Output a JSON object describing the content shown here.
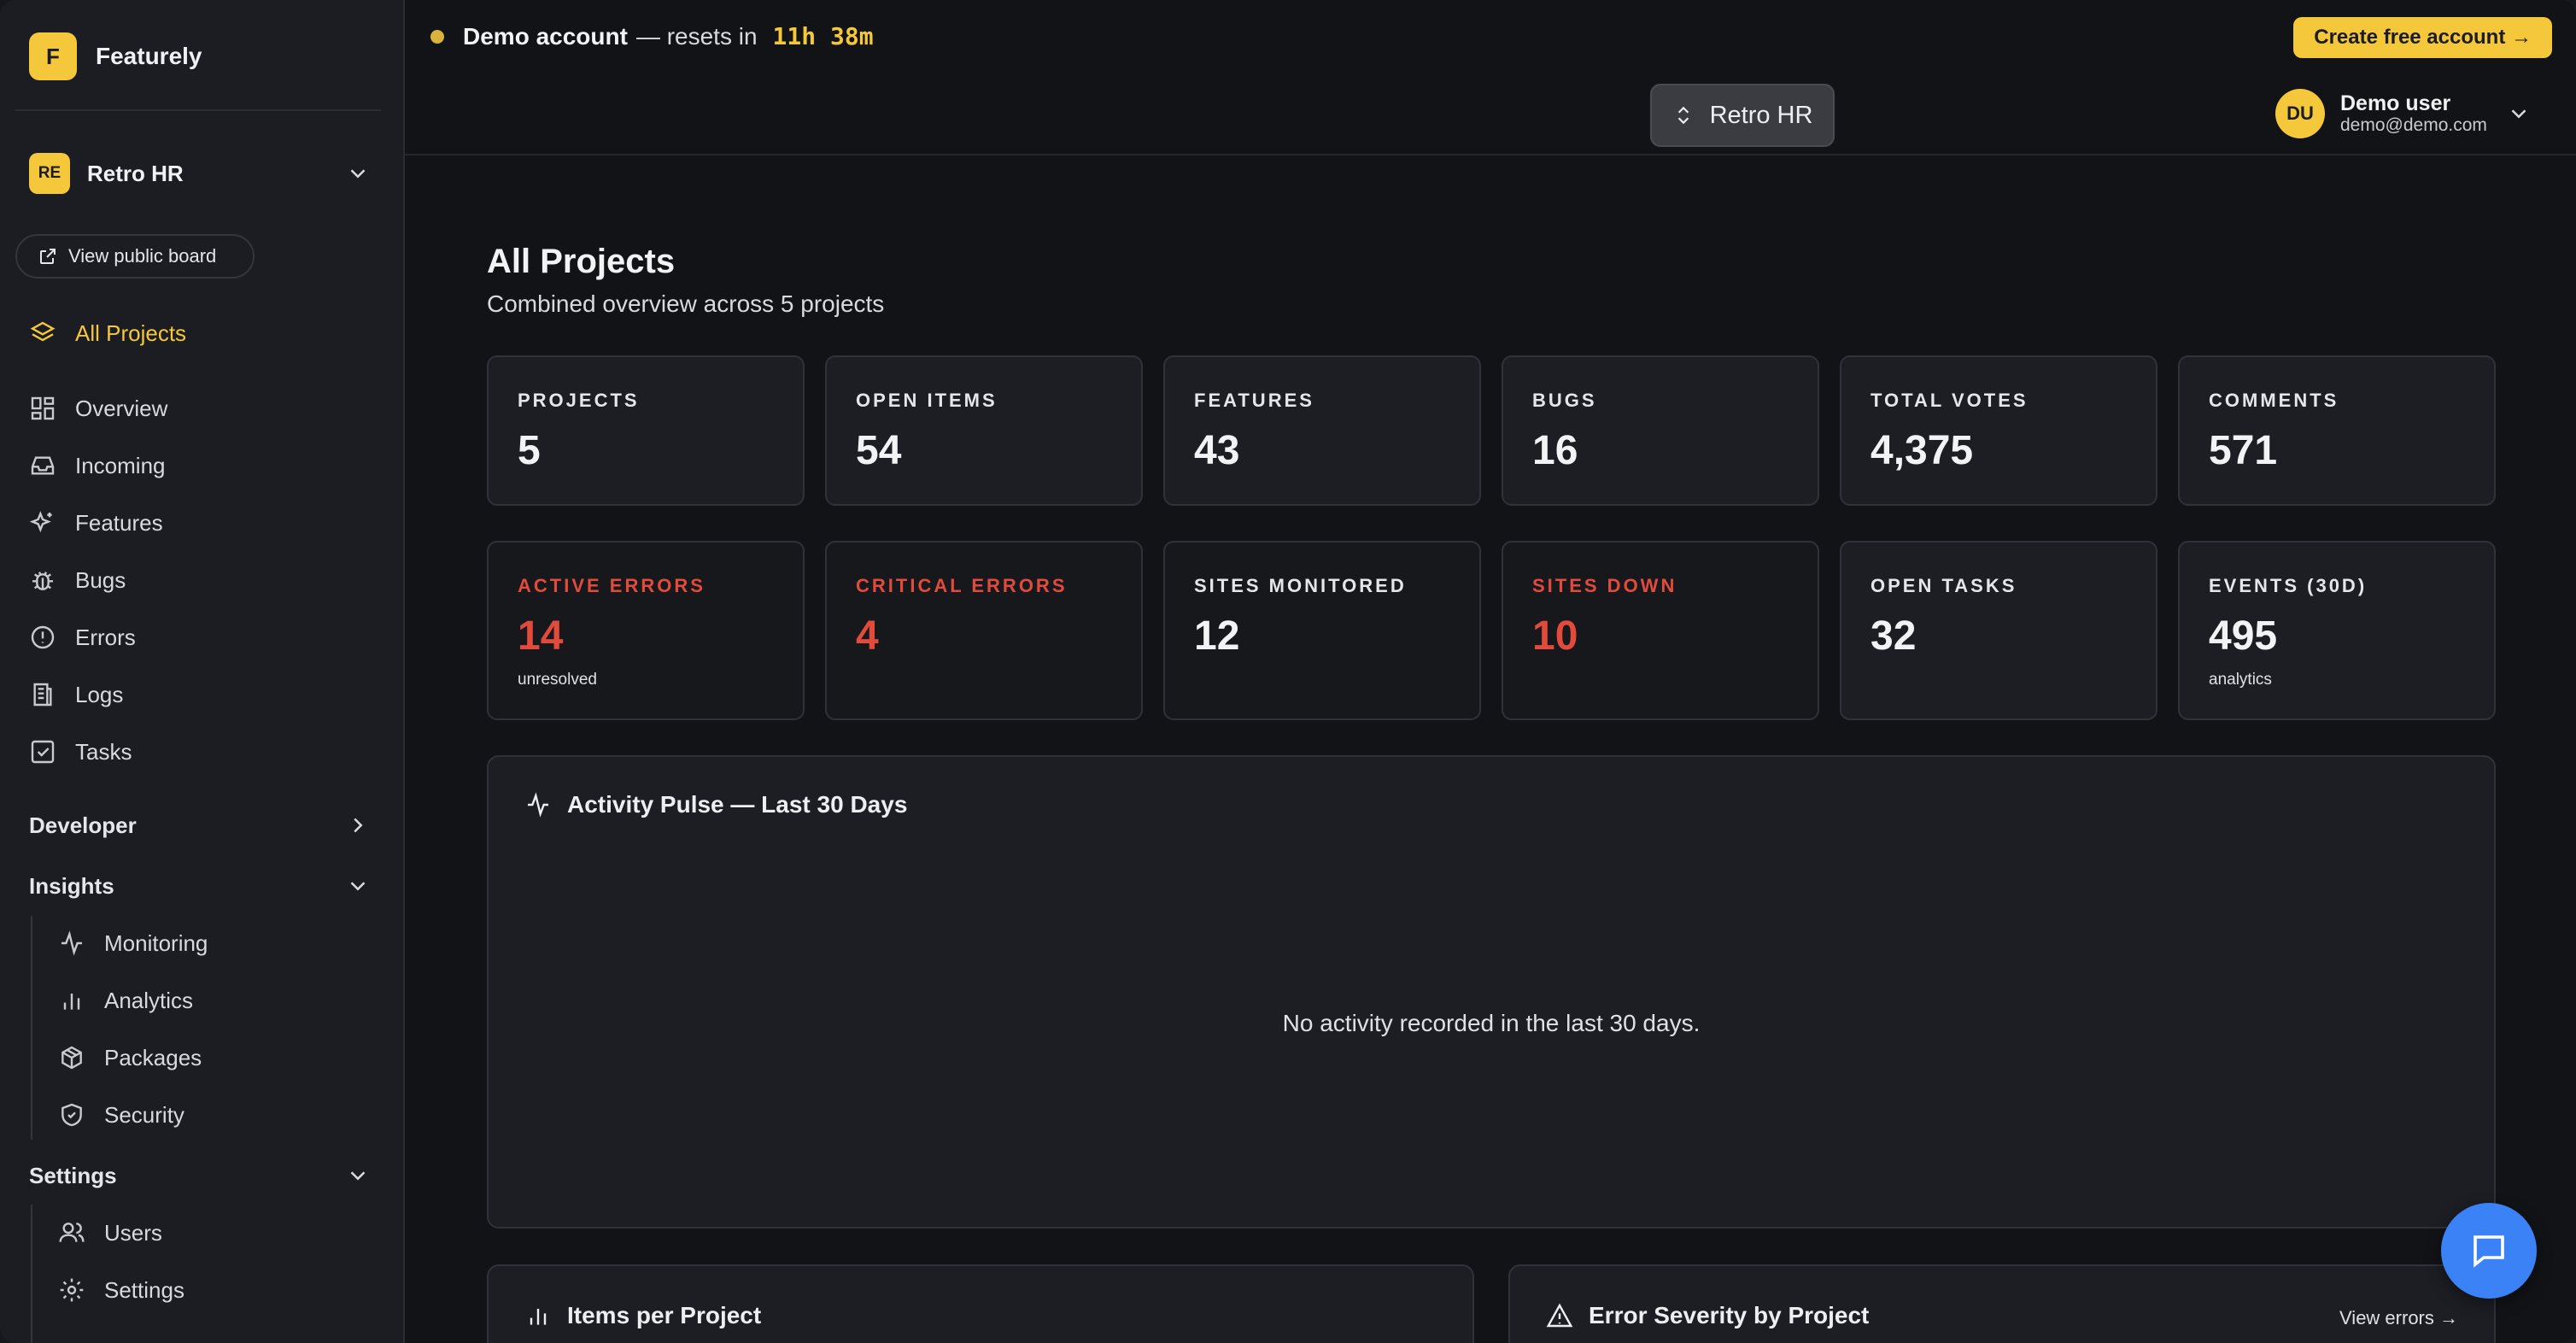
{
  "brand": {
    "logo_letter": "F",
    "name": "Featurely"
  },
  "workspace": {
    "badge": "RE",
    "name": "Retro HR"
  },
  "sidebar": {
    "public_board_label": "View public board",
    "all_projects_label": "All Projects",
    "items": [
      {
        "label": "Overview",
        "icon": "grid-icon"
      },
      {
        "label": "Incoming",
        "icon": "inbox-icon"
      },
      {
        "label": "Features",
        "icon": "sparkles-icon"
      },
      {
        "label": "Bugs",
        "icon": "bug-icon"
      },
      {
        "label": "Errors",
        "icon": "alert-circle-icon"
      },
      {
        "label": "Logs",
        "icon": "logs-icon"
      },
      {
        "label": "Tasks",
        "icon": "checkbox-icon"
      }
    ],
    "developer_label": "Developer",
    "insights_label": "Insights",
    "insights_items": [
      {
        "label": "Monitoring",
        "icon": "activity-icon"
      },
      {
        "label": "Analytics",
        "icon": "bar-chart-icon"
      },
      {
        "label": "Packages",
        "icon": "package-icon"
      },
      {
        "label": "Security",
        "icon": "shield-icon"
      }
    ],
    "settings_label": "Settings",
    "settings_items": [
      {
        "label": "Users",
        "icon": "users-icon"
      },
      {
        "label": "Settings",
        "icon": "gear-icon"
      }
    ]
  },
  "topbar": {
    "demo_strong": "Demo account",
    "demo_text": "— resets in",
    "demo_timer": "11h 38m",
    "create_label": "Create free account →",
    "project_switch_label": "Retro HR",
    "user_initials": "DU",
    "user_name": "Demo user",
    "user_email": "demo@demo.com"
  },
  "main": {
    "title": "All Projects",
    "subtitle": "Combined overview across 5 projects",
    "stats_row1": [
      {
        "label": "PROJECTS",
        "value": "5"
      },
      {
        "label": "OPEN ITEMS",
        "value": "54"
      },
      {
        "label": "FEATURES",
        "value": "43"
      },
      {
        "label": "BUGS",
        "value": "16"
      },
      {
        "label": "TOTAL VOTES",
        "value": "4,375"
      },
      {
        "label": "COMMENTS",
        "value": "571"
      }
    ],
    "stats_row2": [
      {
        "label": "ACTIVE ERRORS",
        "value": "14",
        "note": "unresolved",
        "alert": true
      },
      {
        "label": "CRITICAL ERRORS",
        "value": "4",
        "note": "",
        "alert": true
      },
      {
        "label": "SITES MONITORED",
        "value": "12",
        "note": "",
        "alert": false
      },
      {
        "label": "SITES DOWN",
        "value": "10",
        "note": "",
        "alert": true
      },
      {
        "label": "OPEN TASKS",
        "value": "32",
        "note": "",
        "alert": false
      },
      {
        "label": "EVENTS (30D)",
        "value": "495",
        "note": "analytics",
        "alert": false
      }
    ],
    "activity_title": "Activity Pulse — Last 30 Days",
    "activity_empty": "No activity recorded in the last 30 days.",
    "items_per_project_title": "Items per Project",
    "error_severity_title": "Error Severity by Project",
    "view_errors_label": "View errors →"
  },
  "colors": {
    "accent": "#f5c73a",
    "alert": "#e24b3b",
    "chat": "#3b82f6"
  }
}
